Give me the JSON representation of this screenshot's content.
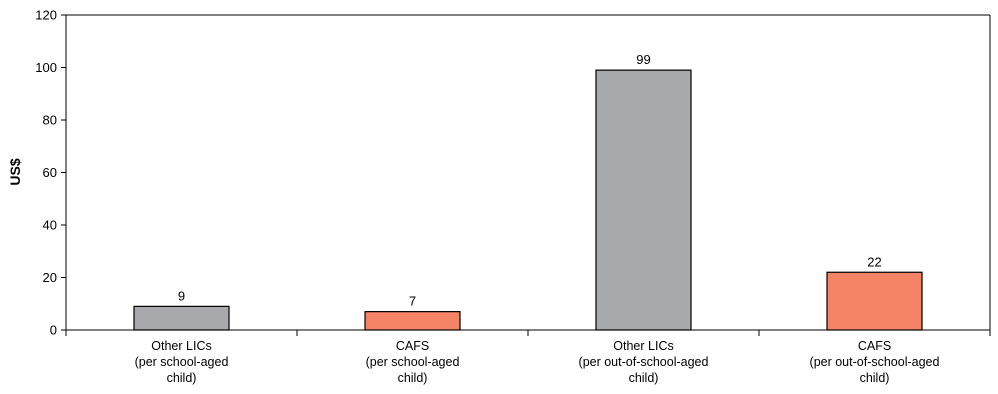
{
  "chart_data": {
    "type": "bar",
    "categories": [
      [
        "Other LICs",
        "(per school-aged",
        "child)"
      ],
      [
        "CAFS",
        "(per school-aged",
        "child)"
      ],
      [
        "Other LICs",
        "(per out-of-school-aged",
        "child)"
      ],
      [
        "CAFS",
        "(per out-of-school-aged",
        "child)"
      ]
    ],
    "values": [
      9,
      7,
      99,
      22
    ],
    "data_labels": [
      "9",
      "7",
      "99",
      "22"
    ],
    "bar_colors": [
      "#a7a9ac",
      "#f58466",
      "#a7a9ac",
      "#f58466"
    ],
    "title": "",
    "xlabel": "",
    "ylabel": "US$",
    "ylim": [
      0,
      120
    ],
    "yticks": [
      0,
      20,
      40,
      60,
      80,
      100,
      120
    ],
    "grid": false,
    "legend": "none"
  }
}
